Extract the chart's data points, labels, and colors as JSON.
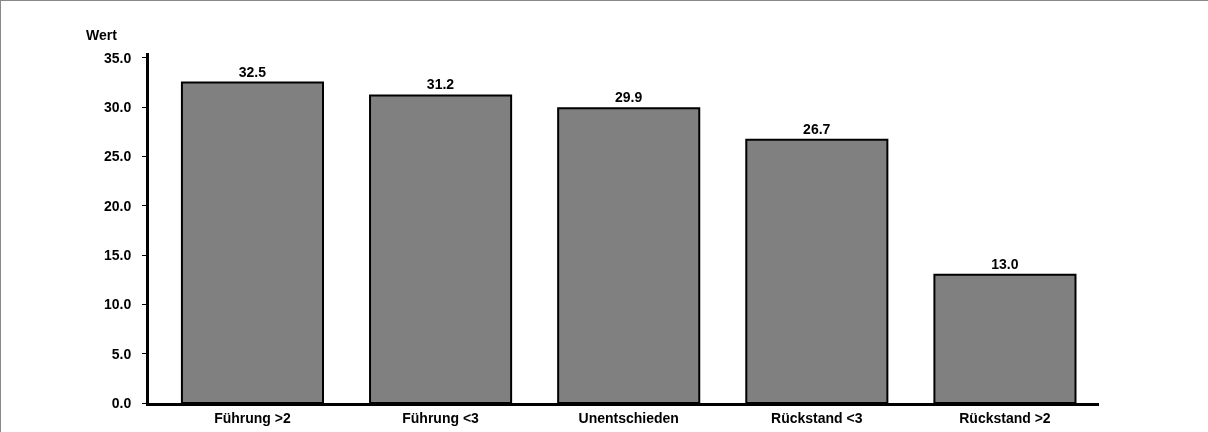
{
  "chart_data": {
    "type": "bar",
    "ylabel": "Wert",
    "categories": [
      "Führung >2",
      "Führung <3",
      "Unentschieden",
      "Rückstand <3",
      "Rückstand >2"
    ],
    "values": [
      32.5,
      31.2,
      29.9,
      26.7,
      13.0
    ],
    "value_labels": [
      "32.5",
      "31.2",
      "29.9",
      "26.7",
      "13.0"
    ],
    "color": "#808080",
    "ylim": [
      0,
      35.5
    ],
    "yticks": [
      {
        "value": 0,
        "label": "0.0"
      },
      {
        "value": 5,
        "label": "5.0"
      },
      {
        "value": 10,
        "label": "10.0"
      },
      {
        "value": 15,
        "label": "15.0"
      },
      {
        "value": 20,
        "label": "20.0"
      },
      {
        "value": 25,
        "label": "25.0"
      },
      {
        "value": 30,
        "label": "30.0"
      },
      {
        "value": 35,
        "label": "35.0"
      }
    ],
    "grid": false,
    "legend": false
  }
}
